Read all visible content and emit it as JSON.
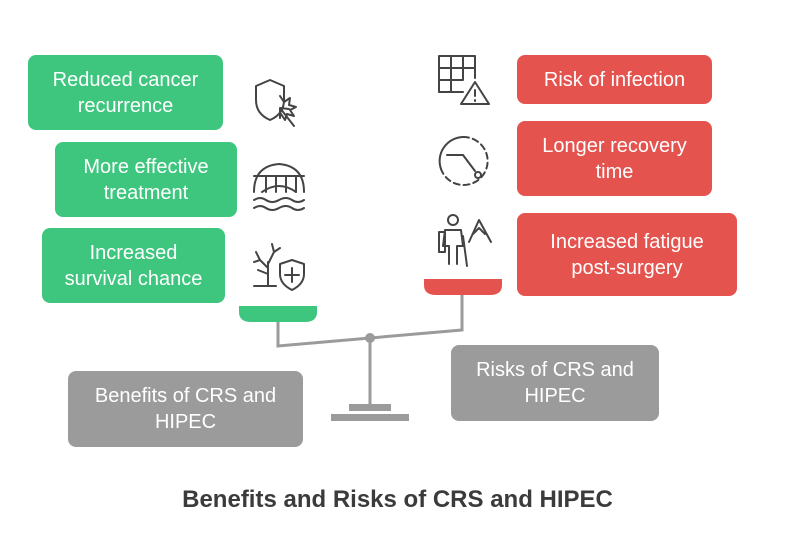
{
  "benefits": {
    "items": [
      {
        "label": "Reduced cancer\nrecurrence",
        "icon": "shield-burst-cursor-icon"
      },
      {
        "label": "More effective\ntreatment",
        "icon": "bridge-over-water-icon"
      },
      {
        "label": "Increased\nsurvival chance",
        "icon": "tree-shield-plus-icon"
      }
    ],
    "label": "Benefits of CRS and\nHIPEC",
    "color": "#3ec67f"
  },
  "risks": {
    "items": [
      {
        "label": "Risk of infection",
        "icon": "grid-warning-icon"
      },
      {
        "label": "Longer recovery\ntime",
        "icon": "dashed-clock-icon"
      },
      {
        "label": "Increased fatigue\npost-surgery",
        "icon": "hiker-mountain-icon"
      }
    ],
    "label": "Risks of CRS and\nHIPEC",
    "color": "#e5534f"
  },
  "title": "Benefits and Risks of CRS and HIPEC"
}
